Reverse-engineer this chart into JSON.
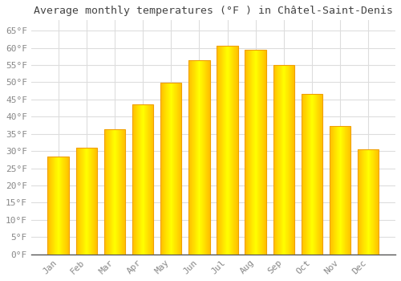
{
  "title": "Average monthly temperatures (°F ) in Châtel-Saint-Denis",
  "months": [
    "Jan",
    "Feb",
    "Mar",
    "Apr",
    "May",
    "Jun",
    "Jul",
    "Aug",
    "Sep",
    "Oct",
    "Nov",
    "Dec"
  ],
  "values": [
    28.4,
    30.9,
    36.3,
    43.5,
    49.8,
    56.5,
    60.6,
    59.4,
    54.9,
    46.6,
    37.2,
    30.4
  ],
  "bar_color": "#FFBE00",
  "bar_edge_color": "#F0A000",
  "background_color": "#FFFFFF",
  "plot_bg_color": "#FFFFFF",
  "grid_color": "#DDDDDD",
  "title_color": "#444444",
  "tick_color": "#888888",
  "title_fontsize": 9.5,
  "tick_fontsize": 8,
  "ylim": [
    0,
    68
  ],
  "yticks": [
    0,
    5,
    10,
    15,
    20,
    25,
    30,
    35,
    40,
    45,
    50,
    55,
    60,
    65
  ]
}
